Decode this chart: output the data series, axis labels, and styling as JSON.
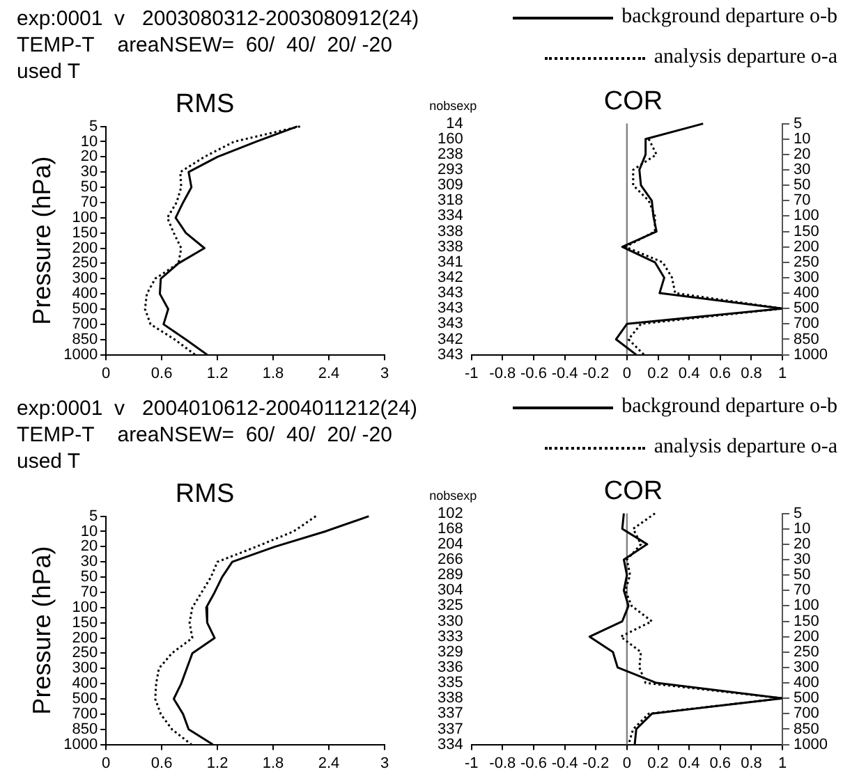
{
  "chart_data": [
    {
      "type": "line",
      "title": "RMS",
      "ylabel": "Pressure (hPa)",
      "orientation": "horizontal",
      "annotations": [
        "exp:0001  v   2003080312-2003080912(24)",
        "TEMP-T    areaNSEW=  60/  40/  20/ -20",
        "used T"
      ],
      "categories": [
        "5",
        "10",
        "20",
        "30",
        "50",
        "70",
        "100",
        "150",
        "200",
        "250",
        "300",
        "400",
        "500",
        "700",
        "850",
        "1000"
      ],
      "xlim": [
        0,
        3
      ],
      "xticks": [
        0,
        0.6,
        1.2,
        1.8,
        2.4,
        3
      ],
      "grid": false,
      "legend": false,
      "series": [
        {
          "color": "#000000",
          "line_style": "solid",
          "values": [
            2.06,
            1.62,
            1.2,
            0.89,
            0.92,
            0.83,
            0.75,
            0.86,
            1.06,
            0.78,
            0.59,
            0.58,
            0.67,
            0.62,
            0.86,
            1.09
          ]
        },
        {
          "color": "#000000",
          "line_style": "dotted",
          "values": [
            2.09,
            1.38,
            1.06,
            0.8,
            0.81,
            0.76,
            0.66,
            0.73,
            0.81,
            0.78,
            0.53,
            0.44,
            0.42,
            0.48,
            0.74,
            0.96
          ]
        }
      ]
    },
    {
      "type": "line",
      "title": "COR",
      "y2label": "nobsexp",
      "orientation": "horizontal",
      "categories": [
        "5",
        "10",
        "20",
        "30",
        "50",
        "70",
        "100",
        "150",
        "200",
        "250",
        "300",
        "400",
        "500",
        "700",
        "850",
        "1000"
      ],
      "y2_categories": [
        "14",
        "160",
        "238",
        "293",
        "309",
        "318",
        "334",
        "338",
        "338",
        "341",
        "342",
        "343",
        "343",
        "343",
        "342",
        "343"
      ],
      "xlim": [
        -1,
        1
      ],
      "xticks": [
        -1,
        -0.8,
        -0.6,
        -0.4,
        -0.2,
        0,
        0.2,
        0.4,
        0.6,
        0.8,
        1
      ],
      "grid": false,
      "legend": "top right",
      "ref_lines": [
        {
          "axis": "x",
          "value": 0,
          "color": "#808080"
        }
      ],
      "series": [
        {
          "name": "background departure o-b",
          "color": "#000000",
          "line_style": "solid",
          "values": [
            0.49,
            0.12,
            0.12,
            0.08,
            0.09,
            0.16,
            0.17,
            0.19,
            -0.03,
            0.18,
            0.24,
            0.21,
            1.0,
            0.0,
            -0.07,
            0.06
          ]
        },
        {
          "name": "analysis departure o-a",
          "color": "#000000",
          "line_style": "dotted",
          "values": [
            null,
            0.14,
            0.19,
            0.04,
            0.04,
            0.14,
            0.18,
            0.18,
            -0.01,
            0.23,
            0.29,
            0.31,
            1.0,
            0.09,
            0.01,
            0.11
          ]
        }
      ]
    },
    {
      "type": "line",
      "title": "RMS",
      "ylabel": "Pressure (hPa)",
      "orientation": "horizontal",
      "annotations": [
        "exp:0001  v   2004010612-2004011212(24)",
        "TEMP-T    areaNSEW=  60/  40/  20/ -20",
        "used T"
      ],
      "categories": [
        "5",
        "10",
        "20",
        "30",
        "50",
        "70",
        "100",
        "150",
        "200",
        "250",
        "300",
        "400",
        "500",
        "700",
        "850",
        "1000"
      ],
      "xlim": [
        0,
        3
      ],
      "xticks": [
        0,
        0.6,
        1.2,
        1.8,
        2.4,
        3
      ],
      "grid": false,
      "legend": false,
      "series": [
        {
          "color": "#000000",
          "line_style": "solid",
          "values": [
            2.83,
            2.36,
            1.82,
            1.36,
            1.25,
            1.17,
            1.08,
            1.09,
            1.17,
            0.93,
            0.87,
            0.81,
            0.73,
            0.83,
            0.89,
            1.15
          ]
        },
        {
          "color": "#000000",
          "line_style": "dotted",
          "values": [
            2.26,
            2.02,
            1.62,
            1.2,
            1.13,
            1.03,
            0.93,
            0.9,
            0.93,
            0.71,
            0.57,
            0.54,
            0.53,
            0.59,
            0.71,
            0.92
          ]
        }
      ]
    },
    {
      "type": "line",
      "title": "COR",
      "y2label": "nobsexp",
      "orientation": "horizontal",
      "categories": [
        "5",
        "10",
        "20",
        "30",
        "50",
        "70",
        "100",
        "150",
        "200",
        "250",
        "300",
        "400",
        "500",
        "700",
        "850",
        "1000"
      ],
      "y2_categories": [
        "102",
        "168",
        "204",
        "266",
        "289",
        "304",
        "325",
        "330",
        "333",
        "329",
        "336",
        "335",
        "338",
        "337",
        "337",
        "334"
      ],
      "xlim": [
        -1,
        1
      ],
      "xticks": [
        -1,
        -0.8,
        -0.6,
        -0.4,
        -0.2,
        0,
        0.2,
        0.4,
        0.6,
        0.8,
        1
      ],
      "grid": false,
      "legend": "top right",
      "ref_lines": [
        {
          "axis": "x",
          "value": 0,
          "color": "#808080"
        }
      ],
      "series": [
        {
          "name": "background departure o-b",
          "color": "#000000",
          "line_style": "solid",
          "values": [
            -0.02,
            -0.03,
            0.13,
            -0.02,
            0.0,
            -0.02,
            0.01,
            -0.03,
            -0.24,
            -0.09,
            -0.06,
            0.19,
            1.0,
            0.16,
            0.06,
            0.05
          ]
        },
        {
          "name": "analysis departure o-a",
          "color": "#000000",
          "line_style": "dotted",
          "values": [
            0.18,
            0.04,
            0.09,
            0.0,
            0.02,
            -0.01,
            0.03,
            0.16,
            -0.04,
            0.09,
            0.08,
            0.12,
            1.0,
            0.14,
            0.04,
            0.01
          ]
        }
      ]
    }
  ]
}
